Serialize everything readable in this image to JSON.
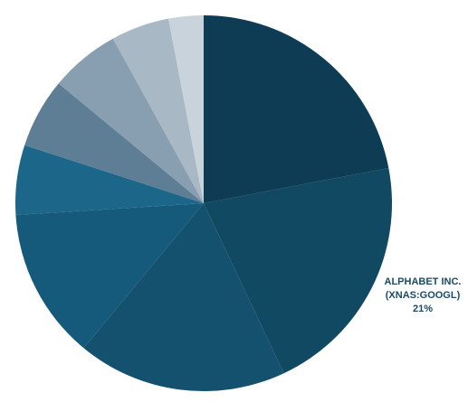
{
  "chart_data": {
    "type": "pie",
    "categories": [
      null,
      "ALPHABET INC. (XNAS:GOOGL)",
      null,
      null,
      null,
      null,
      null,
      null,
      null
    ],
    "values": [
      22,
      21,
      18,
      13,
      6,
      6,
      6,
      5,
      3
    ],
    "value_labels": [
      null,
      "21%",
      null,
      null,
      null,
      null,
      null,
      null,
      null
    ],
    "colors": [
      "#0f3c55",
      "#114862",
      "#13516e",
      "#155a7a",
      "#1b6689",
      "#5e7e95",
      "#879fb1",
      "#a8b8c5",
      "#c9d3dc"
    ]
  }
}
